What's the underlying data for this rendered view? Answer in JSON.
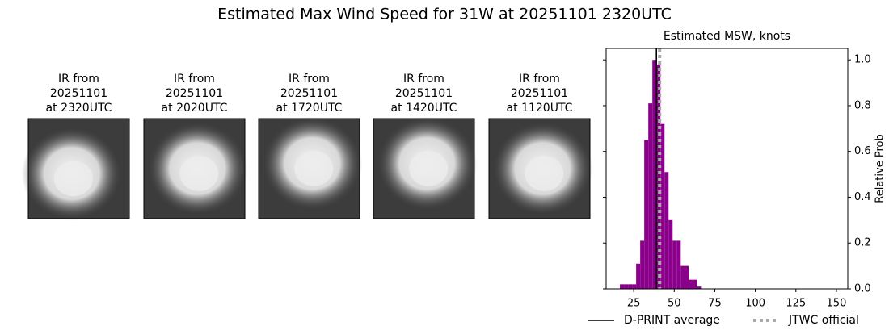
{
  "title": "Estimated Max Wind Speed for 31W at 20251101 2320UTC",
  "panels": [
    {
      "lines": [
        "IR from",
        "20251101",
        "at 2320UTC"
      ]
    },
    {
      "lines": [
        "IR from",
        "20251101",
        "at 2020UTC"
      ]
    },
    {
      "lines": [
        "IR from",
        "20251101",
        "at 1720UTC"
      ]
    },
    {
      "lines": [
        "IR from",
        "20251101",
        "at 1420UTC"
      ]
    },
    {
      "lines": [
        "IR from",
        "20251101",
        "at 1120UTC"
      ]
    }
  ],
  "chart_data": {
    "type": "histogram",
    "title": "Estimated MSW, knots",
    "y_label": "Relative Prob",
    "bins": [
      16.5,
      19,
      21.5,
      24,
      26.5,
      29,
      31.5,
      34,
      36.5,
      39,
      41.5,
      44,
      46.5,
      49,
      51.5,
      54,
      56.5,
      59,
      61.5,
      64,
      66.5
    ],
    "values": [
      0.02,
      0.02,
      0.02,
      0.02,
      0.11,
      0.21,
      0.65,
      0.81,
      1.0,
      0.98,
      0.72,
      0.51,
      0.3,
      0.21,
      0.21,
      0.1,
      0.1,
      0.04,
      0.04,
      0.01
    ],
    "color": "#8b008b",
    "xlim": [
      8,
      157
    ],
    "xticks": [
      25,
      50,
      75,
      100,
      125,
      150
    ],
    "ylim": [
      0,
      1.05
    ],
    "yticks": [
      {
        "value": 0,
        "label": "0.0"
      },
      0.2,
      0.4,
      0.6,
      0.8,
      {
        "value": 1,
        "label": "1.0"
      }
    ],
    "lines": [
      {
        "name": "D-PRINT average",
        "value": 39,
        "color": "#000000",
        "dashed": false
      },
      {
        "name": "JTWC official",
        "value": 41,
        "color": "#aaaaaa",
        "dashed": true
      }
    ]
  }
}
